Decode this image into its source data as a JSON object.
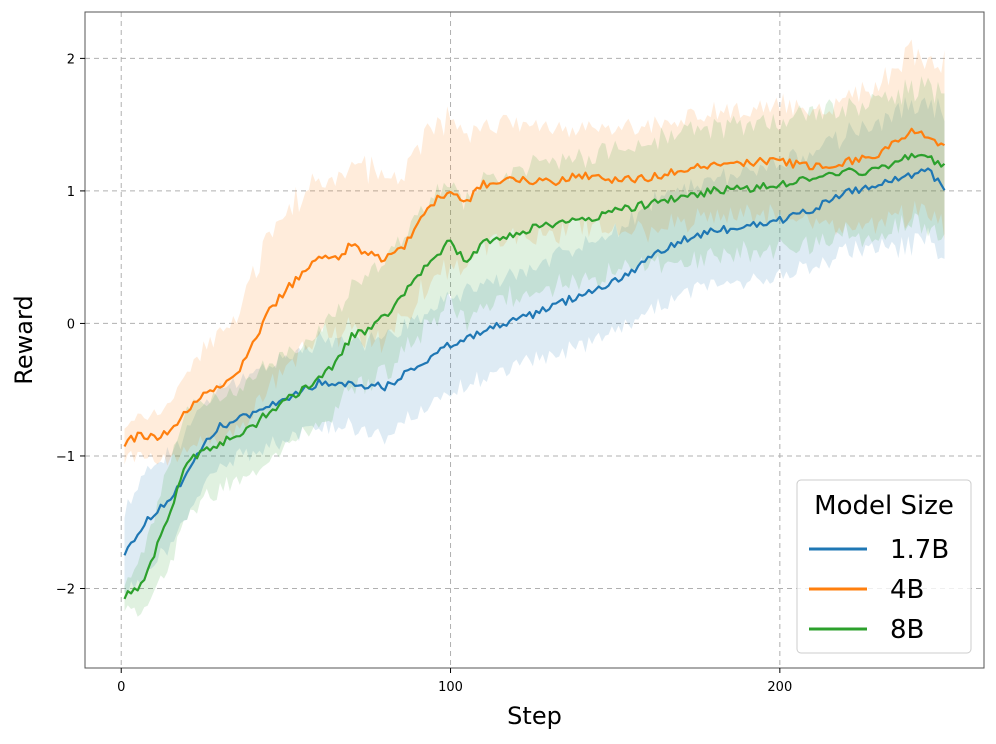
{
  "chart_data": {
    "type": "line",
    "xlabel": "Step",
    "ylabel": "Reward",
    "xlim": [
      -11,
      262
    ],
    "ylim": [
      -2.6,
      2.35
    ],
    "xticks": [
      0,
      100,
      200
    ],
    "yticks": [
      -2,
      -1,
      0,
      1,
      2
    ],
    "ytick_labels": [
      "−2",
      "−1",
      "0",
      "1",
      "2"
    ],
    "grid": true,
    "legend": {
      "title": "Model Size",
      "position": "lower-right"
    },
    "colors": {
      "1.7B": "#1f77b4",
      "4B": "#ff7f0e",
      "8B": "#2ca02c"
    },
    "series": [
      {
        "name": "1.7B",
        "color": "#1f77b4",
        "x": [
          1,
          5,
          10,
          15,
          20,
          25,
          30,
          40,
          50,
          60,
          70,
          80,
          90,
          100,
          110,
          120,
          130,
          140,
          150,
          160,
          170,
          180,
          190,
          200,
          210,
          220,
          230,
          240,
          245,
          250
        ],
        "y": [
          -1.72,
          -1.58,
          -1.43,
          -1.32,
          -1.15,
          -0.92,
          -0.78,
          -0.68,
          -0.56,
          -0.45,
          -0.45,
          -0.48,
          -0.32,
          -0.16,
          -0.05,
          0.02,
          0.12,
          0.22,
          0.32,
          0.48,
          0.62,
          0.7,
          0.73,
          0.78,
          0.86,
          0.98,
          1.05,
          1.12,
          1.15,
          1.02
        ],
        "band": [
          0.3,
          0.35,
          0.38,
          0.35,
          0.32,
          0.3,
          0.28,
          0.3,
          0.32,
          0.32,
          0.32,
          0.35,
          0.35,
          0.35,
          0.35,
          0.35,
          0.36,
          0.38,
          0.38,
          0.4,
          0.4,
          0.42,
          0.42,
          0.42,
          0.42,
          0.44,
          0.48,
          0.52,
          0.52,
          0.55
        ]
      },
      {
        "name": "4B",
        "color": "#ff7f0e",
        "x": [
          1,
          5,
          10,
          15,
          20,
          25,
          30,
          35,
          40,
          45,
          50,
          55,
          60,
          65,
          70,
          75,
          80,
          85,
          90,
          95,
          100,
          105,
          110,
          120,
          130,
          140,
          150,
          160,
          170,
          180,
          190,
          200,
          210,
          220,
          230,
          240,
          245,
          250
        ],
        "y": [
          -0.9,
          -0.85,
          -0.86,
          -0.82,
          -0.65,
          -0.55,
          -0.47,
          -0.38,
          -0.15,
          0.1,
          0.25,
          0.38,
          0.52,
          0.48,
          0.6,
          0.52,
          0.48,
          0.55,
          0.75,
          0.92,
          1.0,
          0.92,
          1.05,
          1.1,
          1.06,
          1.12,
          1.08,
          1.1,
          1.15,
          1.2,
          1.22,
          1.22,
          1.18,
          1.22,
          1.28,
          1.45,
          1.42,
          1.32
        ],
        "band": [
          0.12,
          0.14,
          0.18,
          0.22,
          0.28,
          0.34,
          0.4,
          0.45,
          0.5,
          0.55,
          0.58,
          0.6,
          0.62,
          0.62,
          0.62,
          0.62,
          0.6,
          0.58,
          0.56,
          0.56,
          0.56,
          0.52,
          0.48,
          0.42,
          0.4,
          0.38,
          0.38,
          0.4,
          0.4,
          0.4,
          0.4,
          0.42,
          0.42,
          0.45,
          0.55,
          0.6,
          0.6,
          0.62
        ]
      },
      {
        "name": "8B",
        "color": "#2ca02c",
        "x": [
          1,
          5,
          10,
          15,
          20,
          25,
          30,
          35,
          40,
          45,
          50,
          55,
          60,
          65,
          70,
          75,
          80,
          85,
          90,
          95,
          100,
          105,
          110,
          120,
          130,
          140,
          150,
          160,
          170,
          180,
          190,
          200,
          210,
          220,
          230,
          240,
          245,
          250
        ],
        "y": [
          -2.05,
          -2.02,
          -1.75,
          -1.4,
          -1.05,
          -0.95,
          -0.9,
          -0.85,
          -0.78,
          -0.66,
          -0.58,
          -0.5,
          -0.4,
          -0.3,
          -0.1,
          -0.05,
          0.05,
          0.2,
          0.35,
          0.5,
          0.62,
          0.45,
          0.62,
          0.68,
          0.75,
          0.78,
          0.85,
          0.9,
          0.95,
          1.0,
          1.02,
          1.05,
          1.1,
          1.15,
          1.15,
          1.28,
          1.25,
          1.2
        ],
        "band": [
          0.1,
          0.18,
          0.3,
          0.38,
          0.4,
          0.38,
          0.36,
          0.35,
          0.35,
          0.34,
          0.34,
          0.34,
          0.35,
          0.36,
          0.38,
          0.4,
          0.42,
          0.44,
          0.45,
          0.46,
          0.46,
          0.46,
          0.46,
          0.46,
          0.46,
          0.46,
          0.47,
          0.48,
          0.48,
          0.48,
          0.48,
          0.48,
          0.48,
          0.48,
          0.5,
          0.5,
          0.52,
          0.52
        ]
      }
    ]
  }
}
